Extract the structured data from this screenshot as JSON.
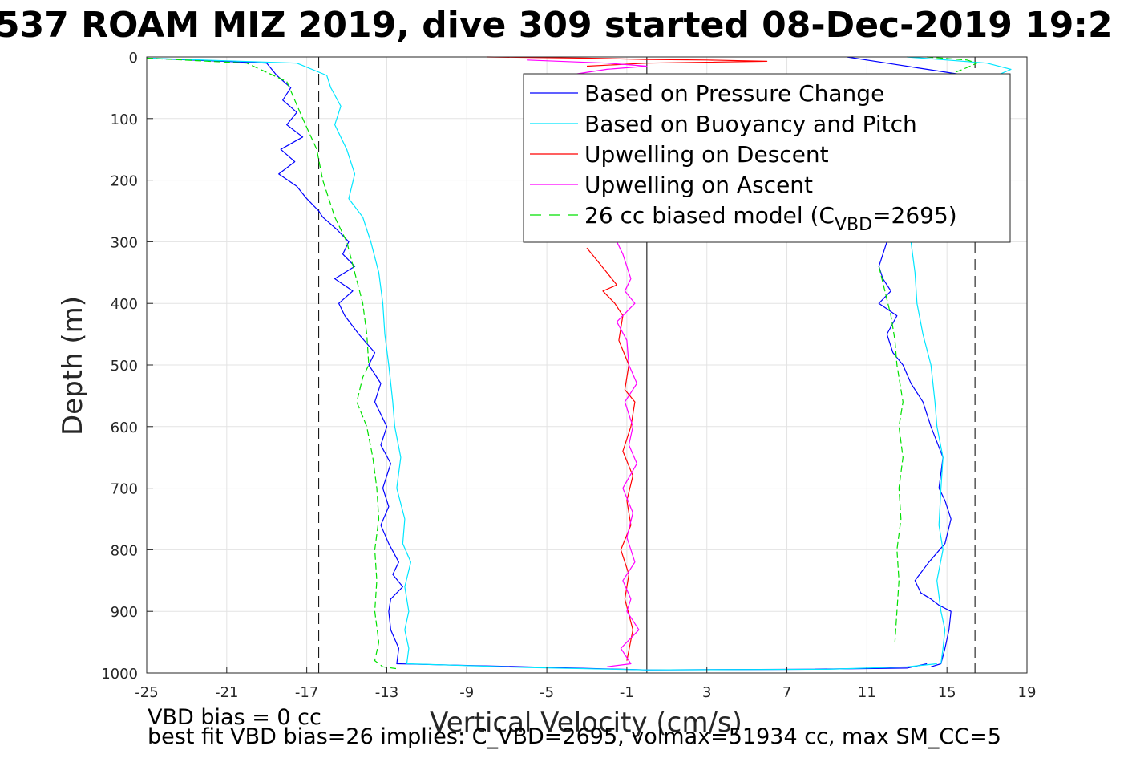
{
  "title": "537 ROAM MIZ 2019, dive 309 started 08-Dec-2019 19:2",
  "chart_data": {
    "type": "line",
    "title": "537 ROAM MIZ 2019, dive 309 started 08-Dec-2019 19:2",
    "xlabel": "Vertical Velocity (cm/s)",
    "ylabel": "Depth (m)",
    "xlim": [
      -25,
      19
    ],
    "ylim": [
      0,
      1000
    ],
    "y_reversed": true,
    "grid": true,
    "legend_position": "top-right",
    "xticks": [
      -25,
      -21,
      -17,
      -13,
      -9,
      -5,
      -1,
      3,
      7,
      11,
      15,
      19
    ],
    "yticks": [
      0,
      100,
      200,
      300,
      400,
      500,
      600,
      700,
      800,
      900,
      1000
    ],
    "vertical_lines": [
      {
        "x": -16.4,
        "style": "dashed",
        "color": "#000000"
      },
      {
        "x": 0,
        "style": "solid",
        "color": "#000000"
      },
      {
        "x": 16.4,
        "style": "dashed",
        "color": "#000000"
      }
    ],
    "series": [
      {
        "name": "Based on Pressure Change",
        "color": "#0000ff",
        "style": "solid",
        "segments": [
          {
            "x": [
              -25,
              -19,
              -18.5,
              -17.8,
              -18.2,
              -17.5,
              -18,
              -17.2,
              -18.3,
              -17.6,
              -18.4,
              -17.5,
              -17,
              -16.4,
              -16.2,
              -15.5,
              -14.9,
              -15.2,
              -14.6,
              -15.6,
              -14.7,
              -15.4,
              -15.1,
              -14.4,
              -13.6,
              -13.9,
              -13.3,
              -13.6,
              -13,
              -13.3,
              -12.8,
              -13.2,
              -12.9,
              -13.3,
              -12.9,
              -12.4,
              -12.7,
              -12.2,
              -12.8,
              -12.9,
              -12.8,
              -12.4,
              -12.5,
              -6,
              0,
              8,
              13,
              14
            ],
            "y": [
              2,
              10,
              30,
              50,
              70,
              90,
              110,
              130,
              150,
              170,
              190,
              210,
              230,
              250,
              260,
              280,
              300,
              320,
              340,
              360,
              380,
              400,
              420,
              450,
              480,
              500,
              530,
              560,
              600,
              630,
              660,
              700,
              730,
              760,
              790,
              820,
              840,
              860,
              880,
              900,
              930,
              960,
              985,
              990,
              995,
              994,
              992,
              985
            ]
          },
          {
            "x": [
              12,
              11.8,
              11.6,
              11.8,
              12.2,
              11.6,
              12.5,
              12,
              12.3,
              12.8,
              13.2,
              13.8,
              14.2,
              14.8,
              14.6,
              14.9,
              15.2,
              14.9,
              14.1,
              13.4,
              13.7,
              14.2,
              14.6,
              15.2,
              15.1,
              14.9,
              14.7,
              14.2
            ],
            "y": [
              300,
              320,
              340,
              360,
              380,
              400,
              420,
              450,
              480,
              500,
              530,
              560,
              600,
              650,
              700,
              720,
              750,
              790,
              820,
              850,
              870,
              880,
              890,
              900,
              930,
              960,
              985,
              990
            ]
          },
          {
            "x": [
              10,
              12,
              14,
              16,
              15.6
            ],
            "y": [
              0,
              10,
              20,
              30,
              40
            ]
          }
        ]
      },
      {
        "name": "Based on Buoyancy and Pitch",
        "color": "#00e6ff",
        "style": "solid",
        "segments": [
          {
            "x": [
              -25,
              -17.5,
              -16,
              -15.8,
              -15.3,
              -15.6,
              -15,
              -14.6,
              -14.9,
              -14.2,
              -13.8,
              -13.4,
              -13.2,
              -13.1,
              -12.9,
              -12.7,
              -12.6,
              -12.3,
              -12.5,
              -12.1,
              -12.2,
              -11.8,
              -12.1,
              -11.9,
              -12.1,
              -11.9,
              -12,
              -6,
              0,
              9,
              13,
              14.5
            ],
            "y": [
              2,
              10,
              30,
              50,
              80,
              110,
              150,
              190,
              230,
              260,
              300,
              350,
              400,
              450,
              500,
              560,
              600,
              650,
              700,
              750,
              790,
              820,
              860,
              900,
              930,
              960,
              985,
              991,
              995,
              994,
              990,
              985
            ]
          },
          {
            "x": [
              13.2,
              13.4,
              13.5,
              13.8,
              14.2,
              14.4,
              14.5,
              14.8,
              14.7,
              14.6,
              14.8,
              14.5,
              14.7,
              14.9,
              14.8,
              14.7
            ],
            "y": [
              300,
              350,
              400,
              450,
              500,
              560,
              600,
              650,
              700,
              760,
              800,
              850,
              900,
              930,
              960,
              985
            ]
          },
          {
            "x": [
              13,
              15,
              17,
              18.2,
              17.5
            ],
            "y": [
              0,
              5,
              10,
              20,
              30
            ]
          }
        ]
      },
      {
        "name": "Upwelling on Descent",
        "color": "#ff0000",
        "style": "solid",
        "segments": [
          {
            "x": [
              -3,
              -2.5,
              -2,
              -1.5,
              -2.2,
              -1.6,
              -1.2,
              -1.4,
              -0.9,
              -1.1,
              -0.6,
              -0.8,
              -1.2,
              -0.7,
              -1,
              -0.8,
              -1.3,
              -0.9,
              -1.1,
              -0.7,
              -1
            ],
            "y": [
              310,
              330,
              350,
              370,
              380,
              400,
              420,
              460,
              500,
              540,
              560,
              600,
              640,
              680,
              720,
              760,
              800,
              840,
              880,
              930,
              980
            ]
          },
          {
            "x": [
              -8,
              -3,
              0,
              3,
              6,
              0,
              -3
            ],
            "y": [
              0,
              2,
              4,
              5,
              7,
              10,
              15
            ]
          }
        ]
      },
      {
        "name": "Upwelling on Ascent",
        "color": "#ff00ff",
        "style": "solid",
        "segments": [
          {
            "x": [
              -1.5,
              -1.2,
              -1,
              -0.8,
              -1.1,
              -0.6,
              -1.5,
              -1,
              -0.9,
              -0.5,
              -1.1,
              -0.7,
              -0.9,
              -0.5,
              -1.2,
              -0.7,
              -1,
              -0.6,
              -1.2,
              -0.8,
              -1,
              -0.4,
              -1.3,
              -0.8,
              -2
            ],
            "y": [
              300,
              320,
              340,
              360,
              380,
              400,
              430,
              460,
              500,
              530,
              560,
              600,
              630,
              660,
              700,
              740,
              780,
              820,
              850,
              880,
              900,
              930,
              960,
              985,
              990
            ]
          },
          {
            "x": [
              -6,
              -2,
              0,
              -2,
              -4,
              -2
            ],
            "y": [
              5,
              10,
              15,
              20,
              30,
              40
            ]
          }
        ]
      },
      {
        "name": "26 cc biased model (C_VBD=2695)",
        "color": "#00e000",
        "style": "dashed",
        "segments": [
          {
            "x": [
              -25,
              -20,
              -18,
              -17.2,
              -16.5,
              -16.2,
              -15.6,
              -15,
              -14.6,
              -14.2,
              -14,
              -13.9,
              -14.2,
              -14.5,
              -14,
              -13.7,
              -13.5,
              -13.4,
              -13.6,
              -13.5,
              -13.6,
              -13.4,
              -13.6,
              -13.2,
              -12.5
            ],
            "y": [
              2,
              10,
              40,
              100,
              150,
              200,
              260,
              300,
              350,
              400,
              450,
              500,
              520,
              560,
              600,
              650,
              700,
              750,
              800,
              850,
              900,
              950,
              980,
              990,
              993
            ]
          },
          {
            "x": [
              11.6,
              11.9,
              12.2,
              12.4,
              12.5,
              12.8,
              12.6,
              12.8,
              12.6,
              12.7,
              12.5,
              12.6,
              12.4
            ],
            "y": [
              340,
              380,
              420,
              460,
              500,
              560,
              600,
              650,
              700,
              750,
              800,
              850,
              950
            ]
          },
          {
            "x": [
              14,
              16,
              16.5,
              15.8,
              15
            ],
            "y": [
              0,
              5,
              10,
              20,
              30
            ]
          }
        ]
      }
    ],
    "legend": [
      {
        "label": "Based on Pressure Change",
        "color": "#0000ff",
        "style": "solid"
      },
      {
        "label": "Based on Buoyancy and Pitch",
        "color": "#00e6ff",
        "style": "solid"
      },
      {
        "label": "Upwelling on Descent",
        "color": "#ff0000",
        "style": "solid"
      },
      {
        "label": "Upwelling on Ascent",
        "color": "#ff00ff",
        "style": "solid"
      },
      {
        "label_main": "26 cc biased model (C",
        "label_sub": "VBD",
        "label_end": "=2695)",
        "color": "#00e000",
        "style": "dashed"
      }
    ],
    "annotations": [
      "VBD bias = 0 cc",
      "best fit VBD bias=26 implies: C_VBD=2695, volmax=51934 cc, max SM_CC=5"
    ]
  }
}
